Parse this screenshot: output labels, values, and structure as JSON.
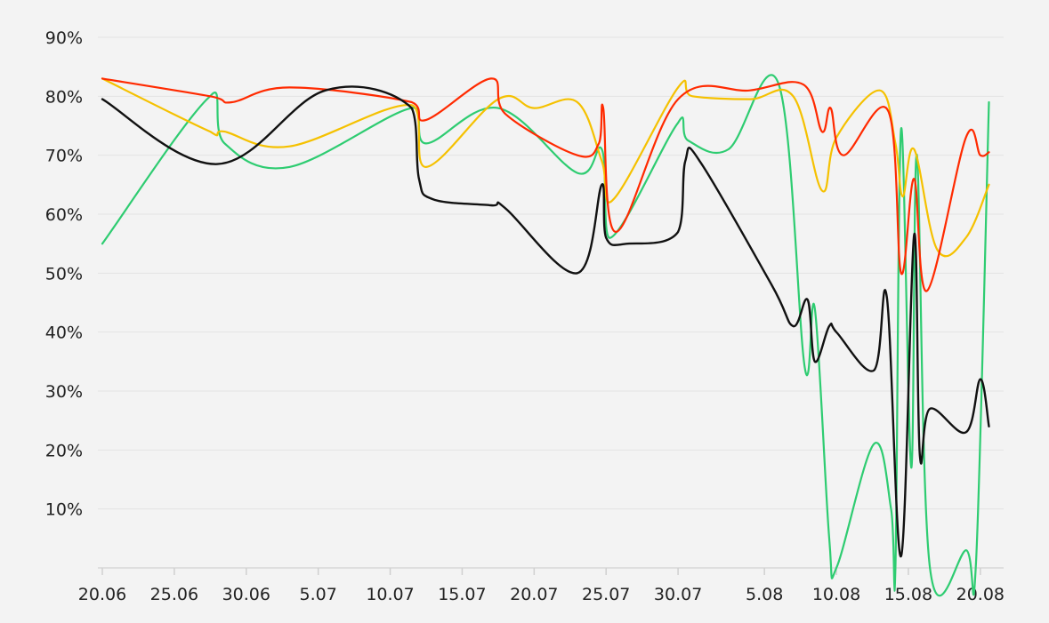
{
  "chart_data": {
    "type": "line",
    "title": "",
    "xlabel": "",
    "ylabel": "",
    "x_tick_labels": [
      "20.06",
      "25.06",
      "30.06",
      "5.07",
      "10.07",
      "15.07",
      "20.07",
      "25.07",
      "30.07",
      "5.08",
      "10.08",
      "15.08",
      "20.08"
    ],
    "y_tick_labels": [
      "10%",
      "20%",
      "30%",
      "40%",
      "50%",
      "60%",
      "70%",
      "80%",
      "90%"
    ],
    "y_ticks": [
      10,
      20,
      30,
      40,
      50,
      60,
      70,
      80,
      90
    ],
    "x_ticks_day": [
      0,
      5,
      10,
      15,
      20,
      25,
      30,
      35,
      40,
      46,
      51,
      56,
      61
    ],
    "xlim": [
      0,
      62
    ],
    "ylim": [
      0,
      92
    ],
    "grid": true,
    "legend": "none",
    "series": [
      {
        "color": "#2ecc71",
        "x": [
          0,
          7.5,
          8.5,
          13,
          21.5,
          22.5,
          27.5,
          33,
          34.7,
          35.3,
          40,
          40.7,
          43.5,
          47,
          48.8,
          49.5,
          50.5,
          51,
          53.6,
          54.8,
          55.1,
          55.5,
          56.2,
          56.6,
          57.5,
          60,
          60.7,
          61.6
        ],
        "y": [
          55,
          80,
          72,
          68,
          78,
          72,
          78,
          67,
          71,
          56,
          75.5,
          72.5,
          71,
          82,
          34,
          44,
          5,
          0,
          21,
          10,
          0,
          74.5,
          17,
          70,
          0,
          3,
          1,
          79
        ]
      },
      {
        "color": "#f5c100",
        "x": [
          0,
          7.5,
          8.5,
          13,
          21.5,
          22.5,
          27.5,
          30,
          33,
          34.7,
          35.5,
          40,
          41,
          45,
          48,
          50,
          51,
          54,
          55.1,
          55.6,
          56.4,
          58,
          60,
          61.6
        ],
        "y": [
          83,
          74,
          74,
          71.5,
          78.5,
          68,
          79.5,
          78,
          79,
          69,
          62.5,
          81.5,
          80,
          79.5,
          80,
          64,
          73,
          81,
          72,
          63,
          71,
          54,
          56,
          65
        ]
      },
      {
        "color": "#ff2a00",
        "x": [
          0,
          7.5,
          9,
          13,
          21.5,
          22.5,
          27,
          28,
          33,
          34.5,
          34.8,
          35.7,
          40,
          45,
          48.7,
          50,
          50.6,
          51.5,
          54.6,
          55.5,
          56.4,
          57.3,
          60,
          61,
          61.6
        ],
        "y": [
          83,
          80,
          79,
          81.5,
          79,
          76,
          83,
          77,
          70,
          72,
          78,
          57,
          79.5,
          81,
          82,
          74,
          78,
          70,
          77.5,
          50,
          66,
          47,
          73,
          70,
          70.5
        ]
      },
      {
        "color": "#111111",
        "x": [
          0,
          8,
          15.5,
          21.5,
          22,
          23,
          27,
          28,
          33,
          34.7,
          35,
          36.5,
          40,
          40.5,
          41.5,
          46.5,
          48,
          49,
          49.5,
          50.5,
          51,
          53.6,
          54.5,
          55.5,
          56.4,
          56.8,
          57.5,
          60,
          61,
          61.6
        ],
        "y": [
          79.5,
          68.5,
          81,
          78,
          66,
          62.5,
          61.5,
          61,
          50,
          65,
          56,
          55,
          57,
          69,
          69,
          48,
          41,
          45.5,
          35,
          41,
          40,
          33.5,
          46,
          2,
          56.5,
          19,
          27,
          23,
          32,
          24
        ]
      }
    ]
  }
}
